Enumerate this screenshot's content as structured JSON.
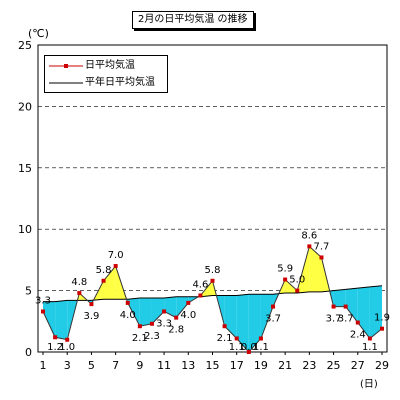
{
  "chart_data": {
    "type": "line",
    "title": "2月の日平均気温 の推移",
    "ylabel": "(℃)",
    "xlabel": "(日)",
    "ylim": [
      0,
      25
    ],
    "yticks": [
      0,
      5,
      10,
      15,
      20,
      25
    ],
    "xticks": [
      1,
      3,
      5,
      7,
      9,
      11,
      13,
      15,
      17,
      19,
      21,
      23,
      25,
      27,
      29
    ],
    "grid": "horizontal dashed",
    "legend_position": "top-left",
    "x": [
      1,
      2,
      3,
      4,
      5,
      6,
      7,
      8,
      9,
      10,
      11,
      12,
      13,
      14,
      15,
      16,
      17,
      18,
      19,
      20,
      21,
      22,
      23,
      24,
      25,
      26,
      27,
      28,
      29
    ],
    "series": [
      {
        "name": "日平均気温",
        "values": [
          3.3,
          1.2,
          1.0,
          4.8,
          3.9,
          5.8,
          7.0,
          4.0,
          2.1,
          2.3,
          3.3,
          2.8,
          4.0,
          4.6,
          5.8,
          2.1,
          1.1,
          0.0,
          1.1,
          3.7,
          5.9,
          5.0,
          8.6,
          7.7,
          3.7,
          3.7,
          2.4,
          1.1,
          1.9
        ],
        "labels": [
          "3.3",
          "1.2",
          "1.0",
          "4.8",
          "3.9",
          "5.8",
          "7.0",
          "4.0",
          "2.1",
          "2.3",
          "3.3",
          "2.8",
          "4.0",
          "4.6",
          "5.8",
          "2.1",
          "1.1",
          "0.0",
          "1.1",
          "3.7",
          "5.9",
          "5.0",
          "8.6",
          "7.7",
          "3.7",
          "3.7",
          "2.4",
          "1.1",
          "1.9"
        ],
        "color": "#cc0000"
      },
      {
        "name": "平年日平均気温",
        "values": [
          4.1,
          4.1,
          4.2,
          4.2,
          4.2,
          4.3,
          4.3,
          4.3,
          4.4,
          4.4,
          4.4,
          4.5,
          4.5,
          4.5,
          4.6,
          4.6,
          4.6,
          4.7,
          4.7,
          4.7,
          4.8,
          4.8,
          4.9,
          4.9,
          5.0,
          5.1,
          5.2,
          5.3,
          5.4
        ],
        "color": "#000000"
      }
    ],
    "fill_colors": {
      "above": "#ffff44",
      "below": "#22cce6"
    }
  }
}
